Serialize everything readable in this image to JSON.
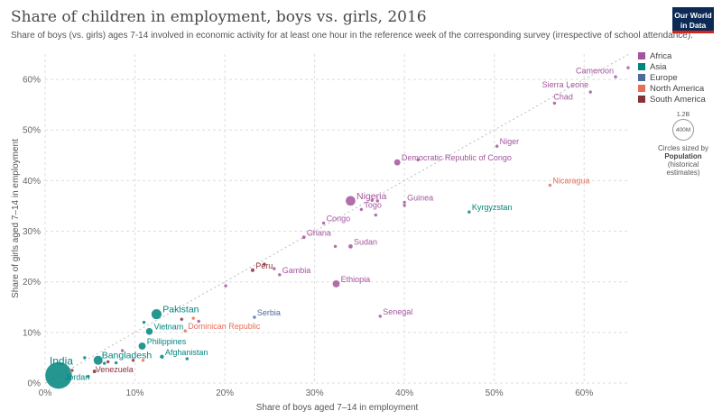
{
  "header": {
    "title": "Share of children in employment, boys vs. girls, 2016",
    "subtitle": "Share of boys (vs. girls) ages 7-14 involved in economic activity for at least one hour in the reference week of the corresponding survey (irrespective of school attendance).",
    "logo_line1": "Our World",
    "logo_line2": "in Data"
  },
  "legend": {
    "items": [
      {
        "label": "Africa",
        "color": "#a2559c"
      },
      {
        "label": "Asia",
        "color": "#00847e"
      },
      {
        "label": "Europe",
        "color": "#4c6a9c"
      },
      {
        "label": "North America",
        "color": "#e56e5a"
      },
      {
        "label": "South America",
        "color": "#883039"
      }
    ],
    "size_key_value": "1.2B",
    "size_key_inner": "400M",
    "size_note_line1": "Circles sized by",
    "size_note_line2": "Population",
    "size_note_line3": "(historical",
    "size_note_line4": "estimates)"
  },
  "chart_data": {
    "type": "scatter",
    "title": "Share of children in employment, boys vs. girls, 2016",
    "xlabel": "Share of boys aged 7–14 in employment",
    "ylabel": "Share of girls aged 7–14 in employment",
    "xlim": [
      0,
      65
    ],
    "ylim": [
      0,
      65
    ],
    "xticks": [
      "0%",
      "10%",
      "20%",
      "30%",
      "40%",
      "50%",
      "60%"
    ],
    "yticks": [
      "0%",
      "10%",
      "20%",
      "30%",
      "40%",
      "50%",
      "60%"
    ],
    "tick_values": [
      0,
      10,
      20,
      30,
      40,
      50,
      60
    ],
    "grid": true,
    "diagonal_line": true,
    "points": [
      {
        "label": "Cameroon",
        "x": 63.5,
        "y": 60.5,
        "region": "Africa",
        "pop": 23
      },
      {
        "label": "Sierra Leone",
        "x": 60.7,
        "y": 57.5,
        "region": "Africa",
        "pop": 7
      },
      {
        "label": "Chad",
        "x": 56.7,
        "y": 55.3,
        "region": "Africa",
        "pop": 14
      },
      {
        "label": "Niger",
        "x": 50.3,
        "y": 46.8,
        "region": "Africa",
        "pop": 20
      },
      {
        "label": "Democratic Republic of Congo",
        "x": 39.2,
        "y": 43.6,
        "region": "Africa",
        "pop": 80
      },
      {
        "label": "Nicaragua",
        "x": 56.2,
        "y": 39.1,
        "region": "North America",
        "pop": 6
      },
      {
        "label": "Kyrgyzstan",
        "x": 47.2,
        "y": 33.8,
        "region": "Asia",
        "pop": 6
      },
      {
        "label": "Nigeria",
        "x": 34.0,
        "y": 36.0,
        "region": "Africa",
        "pop": 186
      },
      {
        "label": "Guinea",
        "x": 40.0,
        "y": 35.7,
        "region": "Africa",
        "pop": 12
      },
      {
        "label": "Togo",
        "x": 35.2,
        "y": 34.3,
        "region": "Africa",
        "pop": 7
      },
      {
        "label": "Congo",
        "x": 31.0,
        "y": 31.6,
        "region": "Africa",
        "pop": 5
      },
      {
        "label": "Ghana",
        "x": 28.8,
        "y": 28.8,
        "region": "Africa",
        "pop": 28
      },
      {
        "label": "Sudan",
        "x": 34.0,
        "y": 27.0,
        "region": "Africa",
        "pop": 40
      },
      {
        "label": "Peru",
        "x": 23.1,
        "y": 22.3,
        "region": "South America",
        "pop": 31
      },
      {
        "label": "Gambia",
        "x": 26.1,
        "y": 21.4,
        "region": "Africa",
        "pop": 2
      },
      {
        "label": "Ethiopia",
        "x": 32.4,
        "y": 19.6,
        "region": "Africa",
        "pop": 102
      },
      {
        "label": "Serbia",
        "x": 23.3,
        "y": 13.0,
        "region": "Europe",
        "pop": 7
      },
      {
        "label": "Senegal",
        "x": 37.3,
        "y": 13.2,
        "region": "Africa",
        "pop": 15
      },
      {
        "label": "Pakistan",
        "x": 12.4,
        "y": 13.6,
        "region": "Asia",
        "pop": 200
      },
      {
        "label": "Vietnam",
        "x": 11.6,
        "y": 10.2,
        "region": "Asia",
        "pop": 94
      },
      {
        "label": "Dominican Republic",
        "x": 15.6,
        "y": 10.3,
        "region": "North America",
        "pop": 10
      },
      {
        "label": "Philippines",
        "x": 10.8,
        "y": 7.3,
        "region": "Asia",
        "pop": 104
      },
      {
        "label": "Afghanistan",
        "x": 13.0,
        "y": 5.2,
        "region": "Asia",
        "pop": 35
      },
      {
        "label": "Bangladesh",
        "x": 5.9,
        "y": 4.5,
        "region": "Asia",
        "pop": 163
      },
      {
        "label": "Venezuela",
        "x": 5.5,
        "y": 2.3,
        "region": "South America",
        "pop": 31
      },
      {
        "label": "India",
        "x": 1.5,
        "y": 1.5,
        "region": "Asia",
        "pop": 1324
      },
      {
        "label": "Jordan",
        "x": 4.8,
        "y": 1.3,
        "region": "Asia",
        "pop": 10
      },
      {
        "label": "",
        "x": 64.9,
        "y": 62.3,
        "region": "Africa",
        "pop": 2
      },
      {
        "label": "",
        "x": 41.5,
        "y": 44.1,
        "region": "Africa",
        "pop": 2
      },
      {
        "label": "",
        "x": 36.4,
        "y": 36.1,
        "region": "Africa",
        "pop": 4
      },
      {
        "label": "",
        "x": 37.0,
        "y": 36.0,
        "region": "Africa",
        "pop": 2
      },
      {
        "label": "",
        "x": 40.0,
        "y": 35.1,
        "region": "Africa",
        "pop": 2
      },
      {
        "label": "",
        "x": 36.8,
        "y": 33.2,
        "region": "Africa",
        "pop": 2
      },
      {
        "label": "",
        "x": 32.3,
        "y": 27.0,
        "region": "Africa",
        "pop": 2
      },
      {
        "label": "",
        "x": 24.4,
        "y": 23.5,
        "region": "South America",
        "pop": 2
      },
      {
        "label": "",
        "x": 25.5,
        "y": 22.6,
        "region": "Africa",
        "pop": 2
      },
      {
        "label": "",
        "x": 20.1,
        "y": 19.2,
        "region": "Africa",
        "pop": 2
      },
      {
        "label": "",
        "x": 11.0,
        "y": 12.0,
        "region": "Asia",
        "pop": 2
      },
      {
        "label": "",
        "x": 15.2,
        "y": 12.6,
        "region": "South America",
        "pop": 2
      },
      {
        "label": "",
        "x": 16.5,
        "y": 12.8,
        "region": "North America",
        "pop": 2
      },
      {
        "label": "",
        "x": 17.1,
        "y": 12.2,
        "region": "Africa",
        "pop": 2
      },
      {
        "label": "",
        "x": 8.6,
        "y": 6.4,
        "region": "Africa",
        "pop": 4
      },
      {
        "label": "",
        "x": 9.8,
        "y": 4.5,
        "region": "South America",
        "pop": 2
      },
      {
        "label": "",
        "x": 10.9,
        "y": 4.5,
        "region": "North America",
        "pop": 2
      },
      {
        "label": "",
        "x": 15.8,
        "y": 4.8,
        "region": "Asia",
        "pop": 3
      },
      {
        "label": "",
        "x": 7.0,
        "y": 4.2,
        "region": "South America",
        "pop": 5
      },
      {
        "label": "",
        "x": 7.9,
        "y": 4.0,
        "region": "Asia",
        "pop": 5
      },
      {
        "label": "",
        "x": 6.6,
        "y": 3.9,
        "region": "Asia",
        "pop": 3
      },
      {
        "label": "",
        "x": 3.0,
        "y": 2.5,
        "region": "South America",
        "pop": 3
      },
      {
        "label": "",
        "x": 4.4,
        "y": 5.0,
        "region": "Asia",
        "pop": 2
      }
    ]
  }
}
